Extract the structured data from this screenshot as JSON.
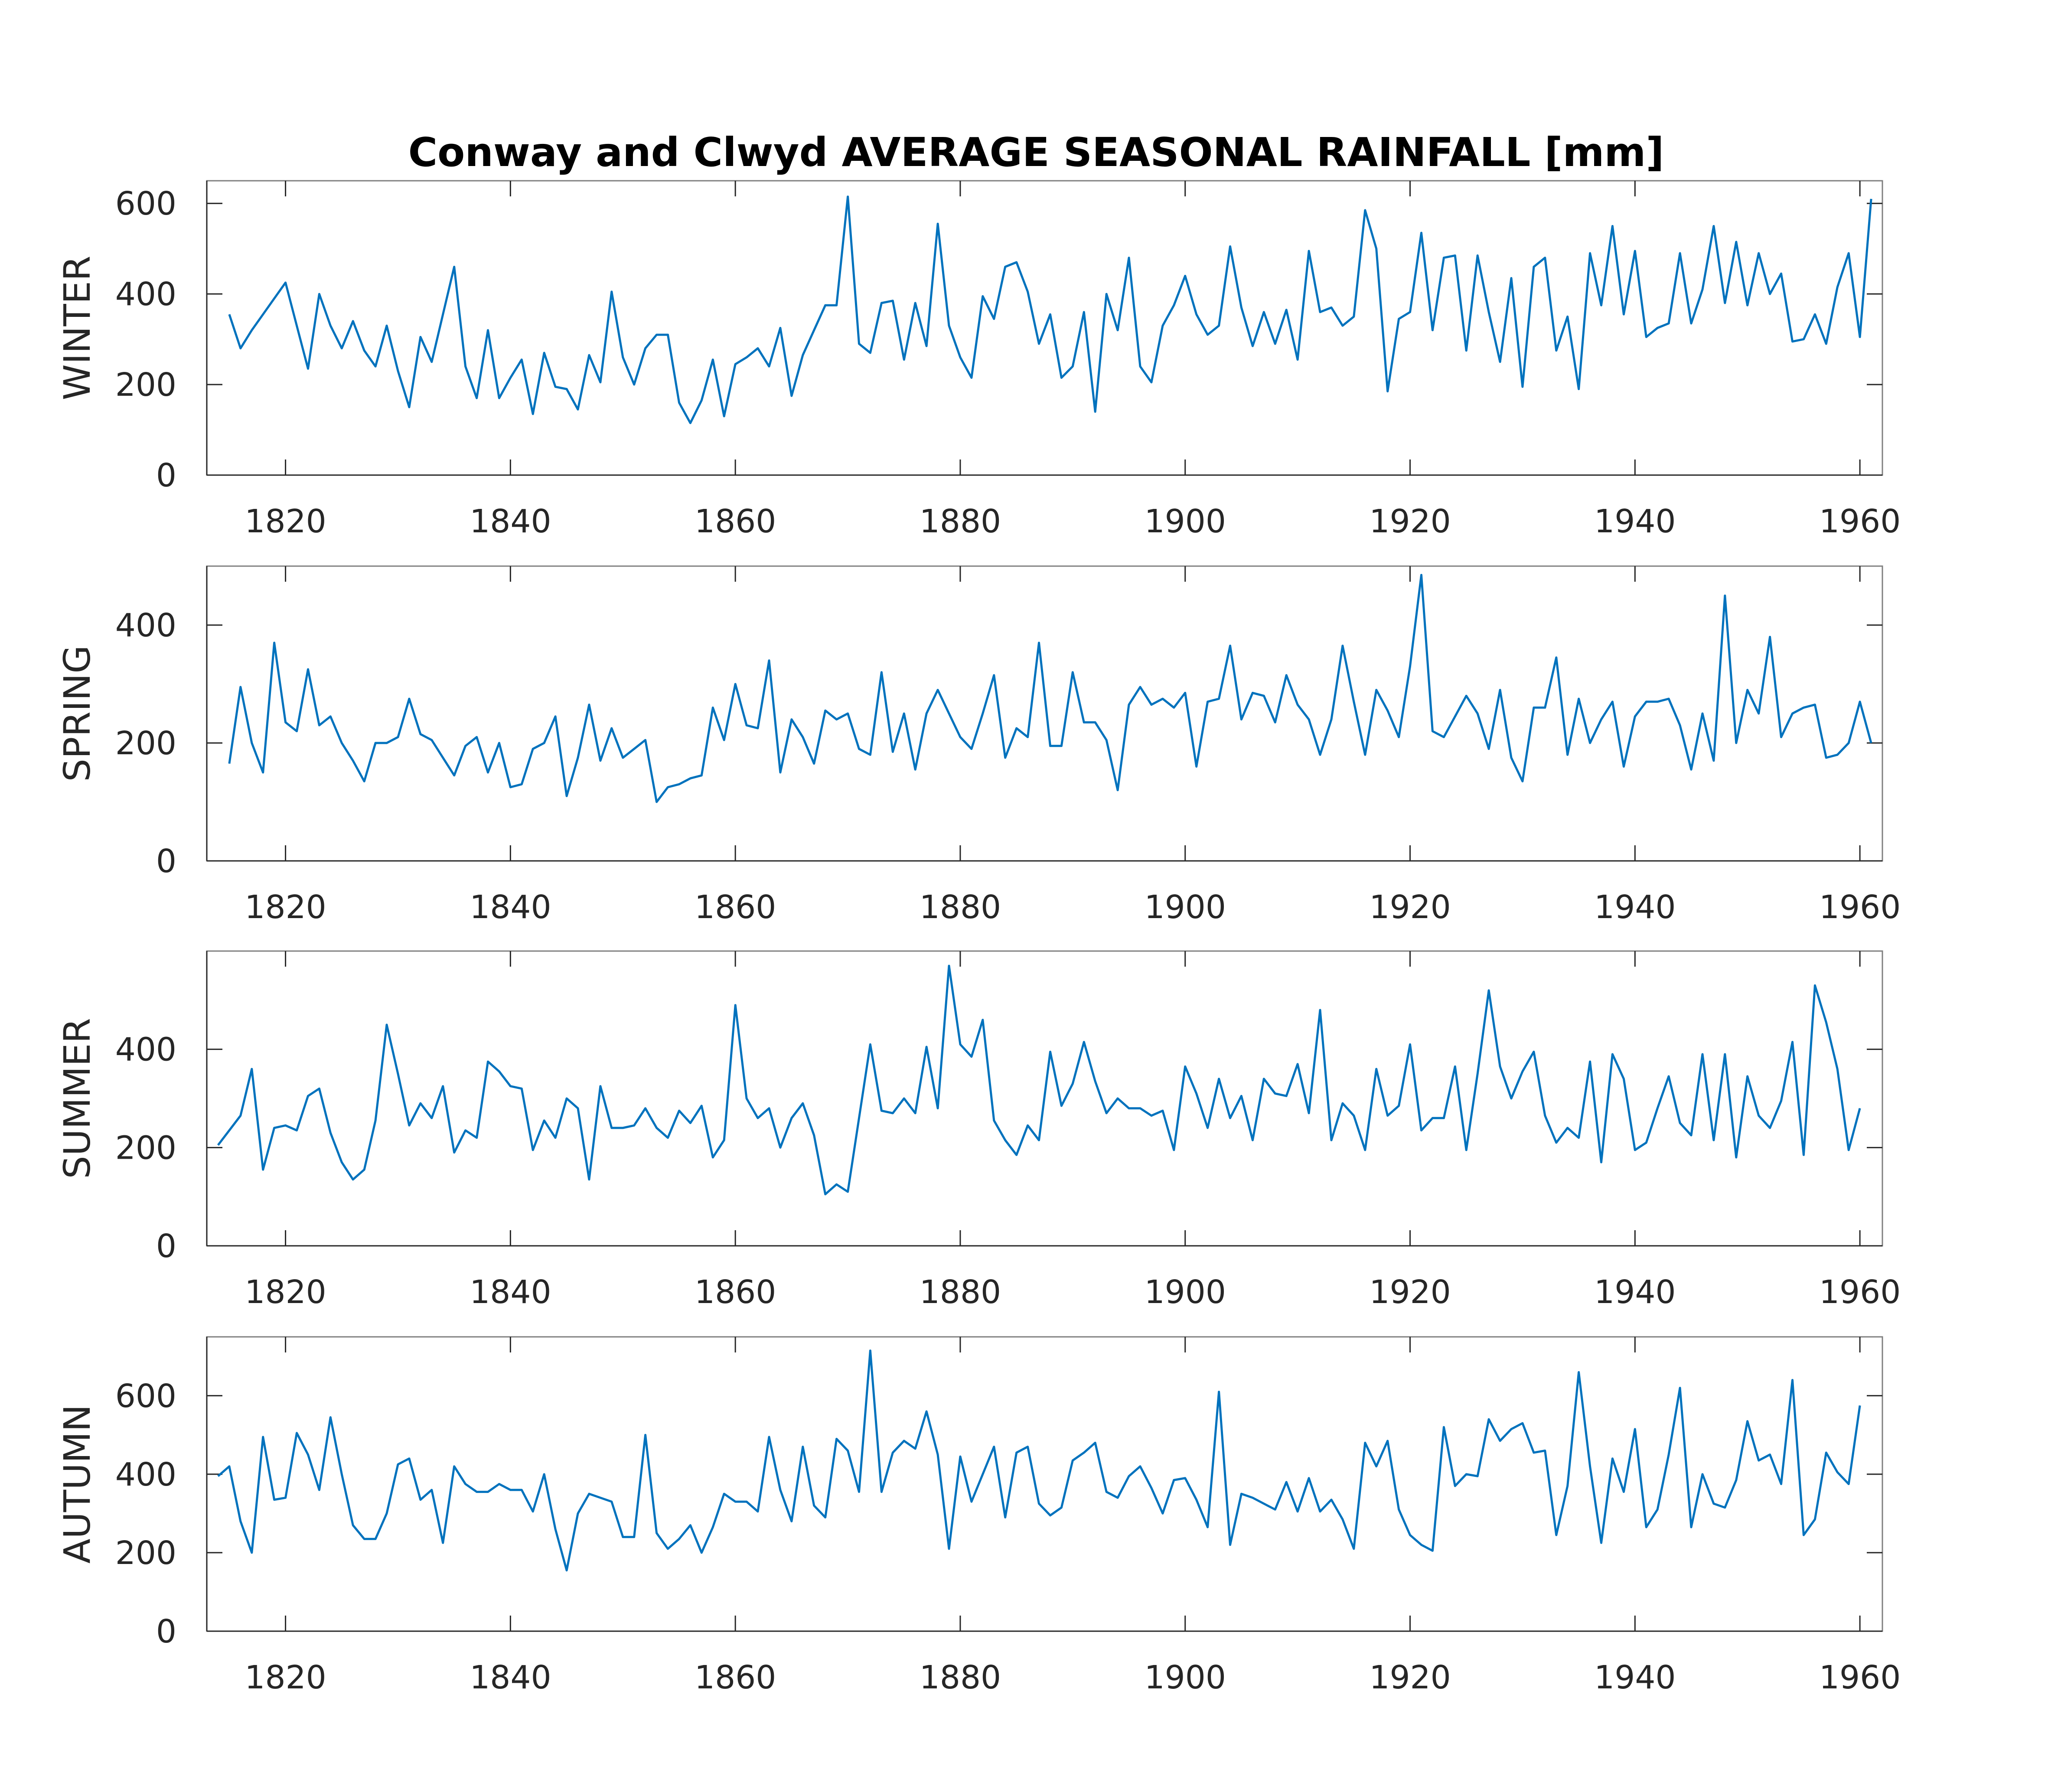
{
  "colors": {
    "line": "#0072BD",
    "axes": "#262626",
    "frame": "#7f7f7f",
    "background": "#ffffff"
  },
  "chart_data": [
    {
      "type": "line",
      "title": "Conway and Clwyd AVERAGE SEASONAL RAINFALL [mm]",
      "ylabel": "WINTER",
      "xlim": [
        1813,
        1962
      ],
      "ylim": [
        0,
        650
      ],
      "xticks": [
        "1820",
        "1840",
        "1860",
        "1880",
        "1900",
        "1920",
        "1940",
        "1960"
      ],
      "yticks": [
        "0",
        "200",
        "400",
        "600"
      ],
      "x_start": 1815,
      "values": [
        355,
        280,
        320,
        355,
        390,
        425,
        330,
        235,
        400,
        330,
        280,
        340,
        275,
        240,
        330,
        230,
        150,
        305,
        250,
        355,
        460,
        240,
        170,
        320,
        170,
        215,
        255,
        135,
        270,
        195,
        190,
        145,
        265,
        205,
        405,
        260,
        200,
        280,
        310,
        310,
        160,
        115,
        165,
        255,
        130,
        245,
        260,
        280,
        240,
        325,
        175,
        265,
        320,
        375,
        375,
        615,
        290,
        270,
        380,
        385,
        255,
        380,
        285,
        555,
        330,
        260,
        215,
        395,
        345,
        460,
        470,
        405,
        290,
        355,
        215,
        240,
        360,
        140,
        400,
        320,
        480,
        240,
        205,
        330,
        375,
        440,
        355,
        310,
        330,
        505,
        370,
        285,
        360,
        290,
        365,
        255,
        495,
        360,
        370,
        330,
        350,
        585,
        500,
        185,
        345,
        360,
        535,
        320,
        480,
        485,
        275,
        485,
        360,
        250,
        435,
        195,
        460,
        480,
        275,
        350,
        190,
        490,
        375,
        550,
        355,
        495,
        305,
        325,
        335,
        490,
        335,
        410,
        550,
        380,
        515,
        375,
        490,
        400,
        445,
        295,
        300,
        355,
        290,
        415,
        490,
        305,
        610
      ]
    },
    {
      "type": "line",
      "title": "",
      "ylabel": "SPRING",
      "xlim": [
        1813,
        1962
      ],
      "ylim": [
        0,
        500
      ],
      "xticks": [
        "1820",
        "1840",
        "1860",
        "1880",
        "1900",
        "1920",
        "1940",
        "1960"
      ],
      "yticks": [
        "0",
        "200",
        "400"
      ],
      "x_start": 1815,
      "values": [
        165,
        295,
        200,
        150,
        370,
        235,
        220,
        325,
        230,
        245,
        200,
        170,
        135,
        200,
        200,
        210,
        275,
        215,
        205,
        175,
        145,
        195,
        210,
        150,
        200,
        125,
        130,
        190,
        200,
        245,
        110,
        175,
        265,
        170,
        225,
        175,
        190,
        205,
        100,
        125,
        130,
        140,
        145,
        260,
        205,
        300,
        230,
        225,
        340,
        150,
        240,
        210,
        165,
        255,
        240,
        250,
        190,
        180,
        320,
        185,
        250,
        155,
        250,
        290,
        250,
        210,
        190,
        250,
        315,
        175,
        225,
        210,
        370,
        195,
        195,
        320,
        235,
        235,
        205,
        120,
        265,
        295,
        265,
        275,
        260,
        285,
        160,
        270,
        275,
        365,
        240,
        285,
        280,
        235,
        315,
        265,
        240,
        180,
        240,
        365,
        270,
        180,
        290,
        255,
        210,
        330,
        485,
        220,
        210,
        245,
        280,
        250,
        190,
        290,
        175,
        135,
        260,
        260,
        345,
        180,
        275,
        200,
        240,
        270,
        160,
        245,
        270,
        270,
        275,
        230,
        155,
        250,
        170,
        450,
        200,
        290,
        250,
        380,
        210,
        250,
        260,
        265,
        175,
        180,
        200,
        270,
        200
      ]
    },
    {
      "type": "line",
      "title": "",
      "ylabel": "SUMMER",
      "xlim": [
        1813,
        1962
      ],
      "ylim": [
        0,
        600
      ],
      "xticks": [
        "1820",
        "1840",
        "1860",
        "1880",
        "1900",
        "1920",
        "1940",
        "1960"
      ],
      "yticks": [
        "0",
        "200",
        "400"
      ],
      "x_start": 1814,
      "values": [
        205,
        235,
        265,
        360,
        155,
        240,
        245,
        235,
        305,
        320,
        230,
        170,
        135,
        155,
        255,
        450,
        350,
        245,
        290,
        260,
        325,
        190,
        235,
        220,
        375,
        355,
        325,
        320,
        195,
        255,
        220,
        300,
        280,
        135,
        325,
        240,
        240,
        245,
        280,
        240,
        220,
        275,
        250,
        285,
        180,
        215,
        490,
        300,
        260,
        280,
        200,
        260,
        290,
        225,
        105,
        125,
        110,
        260,
        410,
        275,
        270,
        300,
        270,
        405,
        280,
        570,
        410,
        385,
        460,
        255,
        215,
        185,
        245,
        215,
        395,
        285,
        330,
        415,
        335,
        270,
        300,
        280,
        280,
        265,
        275,
        195,
        365,
        310,
        240,
        340,
        260,
        305,
        215,
        340,
        310,
        305,
        370,
        270,
        480,
        215,
        290,
        265,
        195,
        360,
        265,
        285,
        410,
        235,
        260,
        260,
        365,
        195,
        350,
        520,
        365,
        300,
        355,
        395,
        265,
        210,
        240,
        220,
        375,
        170,
        390,
        340,
        195,
        210,
        280,
        345,
        250,
        225,
        390,
        215,
        390,
        180,
        345,
        265,
        240,
        295,
        415,
        185,
        530,
        455,
        360,
        195,
        280
      ]
    },
    {
      "type": "line",
      "title": "",
      "ylabel": "AUTUMN",
      "xlim": [
        1813,
        1962
      ],
      "ylim": [
        0,
        750
      ],
      "xticks": [
        "1820",
        "1840",
        "1860",
        "1880",
        "1900",
        "1920",
        "1940",
        "1960"
      ],
      "yticks": [
        "0",
        "200",
        "400",
        "600"
      ],
      "x_start": 1814,
      "values": [
        395,
        420,
        280,
        200,
        495,
        335,
        340,
        505,
        450,
        360,
        545,
        400,
        270,
        235,
        235,
        300,
        425,
        440,
        335,
        360,
        225,
        420,
        375,
        355,
        355,
        375,
        360,
        360,
        305,
        400,
        260,
        155,
        300,
        350,
        340,
        330,
        240,
        240,
        500,
        250,
        210,
        235,
        270,
        200,
        265,
        350,
        330,
        330,
        305,
        495,
        360,
        280,
        470,
        320,
        290,
        490,
        460,
        355,
        715,
        355,
        455,
        485,
        465,
        560,
        450,
        210,
        445,
        330,
        400,
        470,
        290,
        455,
        470,
        325,
        295,
        315,
        435,
        455,
        480,
        355,
        340,
        395,
        420,
        365,
        300,
        385,
        390,
        335,
        265,
        610,
        220,
        350,
        340,
        325,
        310,
        380,
        305,
        390,
        305,
        335,
        285,
        210,
        480,
        420,
        485,
        310,
        245,
        220,
        205,
        520,
        370,
        400,
        395,
        540,
        485,
        515,
        530,
        455,
        460,
        245,
        370,
        660,
        420,
        225,
        440,
        355,
        515,
        265,
        310,
        450,
        620,
        265,
        400,
        325,
        315,
        385,
        535,
        435,
        450,
        375,
        640,
        245,
        285,
        455,
        405,
        375,
        575
      ]
    }
  ]
}
